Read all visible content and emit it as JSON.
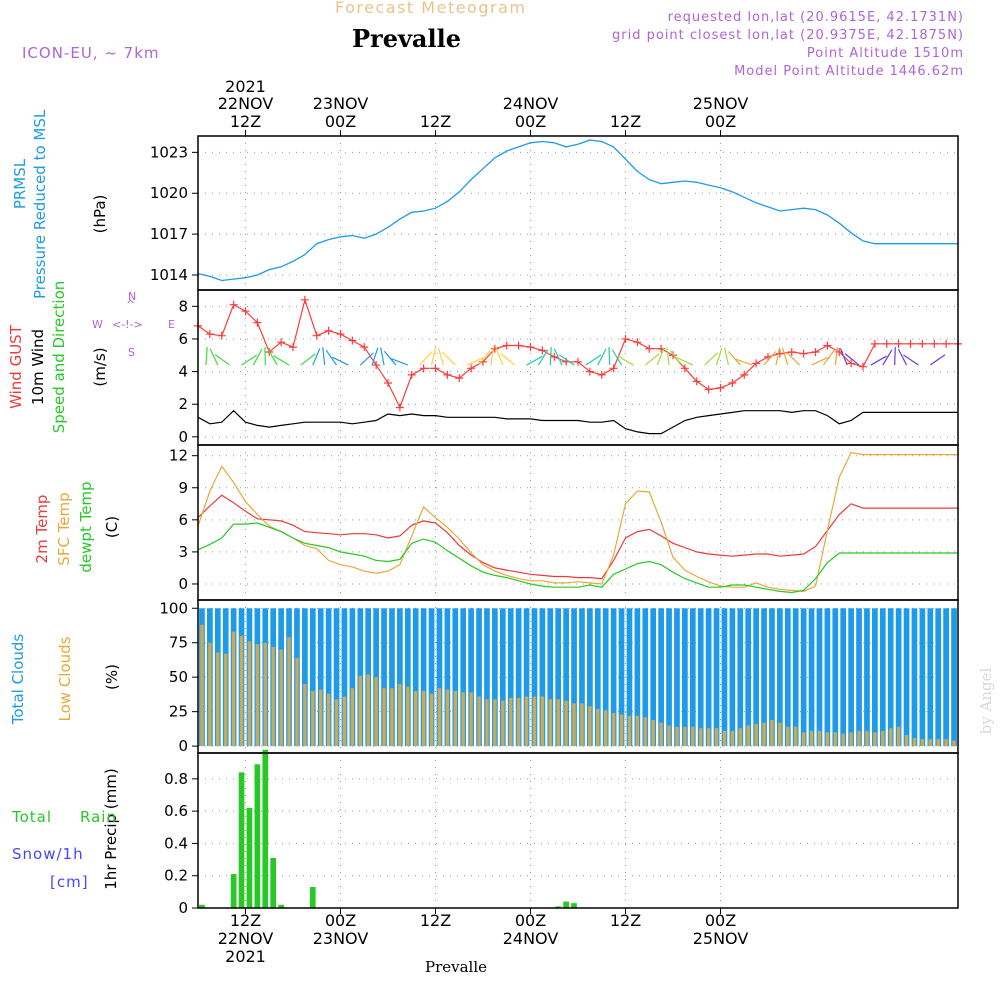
{
  "header": {
    "supertitle": "Forecast Meteogram",
    "title": "Prevalle",
    "model": "ICON-EU, ~ 7km",
    "requested": "requested lon,lat (20.9615E, 42.1731N)",
    "gridpoint": "grid point closest lon,lat (20.9375E, 42.1875N)",
    "point_altitude": "Point Altitude 1510m",
    "model_altitude": "Model Point Altitude 1446.62m",
    "footer": "Prevalle",
    "watermark": "by Angel"
  },
  "labels": {
    "prmsl_1": "PRMSL",
    "prmsl_2": "Pressure Reduced to MSL",
    "prmsl_unit": "(hPa)",
    "gust": "Wind GUST",
    "wind10": "10m Wind",
    "wind_dir": "Speed and Direction",
    "wind_unit": "(m/s)",
    "t2m": "2m Temp",
    "sfc": "SFC Temp",
    "dewpt": "dewpt Temp",
    "temp_unit": "(C)",
    "total_clouds": "Total Clouds",
    "low_clouds": "Low Clouds",
    "cloud_unit": "(%)",
    "precip": "1hr Precip (mm)",
    "rain_total": "Total",
    "rain": "Rain",
    "snow": "Snow/1h",
    "cm": "[cm]",
    "compass_n": "N",
    "compass_s": "S",
    "compass_w": "W",
    "compass_e": "E",
    "compass_arrow": "<-!->"
  },
  "colors": {
    "pressure": "#1e9be8",
    "gust": "#ff3c3c",
    "wind": "#000000",
    "t2m": "#e83c3c",
    "sfc": "#e8a83c",
    "dewpt": "#28c828",
    "total_clouds": "#1e9be8",
    "low_clouds": "#c8aa5a",
    "rain": "#28c828",
    "snow": "#4646ff",
    "title_purple": "#b064d6"
  },
  "time_axis": {
    "top_labels": [
      {
        "line1": "2021",
        "line2": "22NOV",
        "line3": "12Z"
      },
      {
        "line1": "",
        "line2": "23NOV",
        "line3": "00Z"
      },
      {
        "line1": "",
        "line2": "",
        "line3": "12Z"
      },
      {
        "line1": "",
        "line2": "24NOV",
        "line3": "00Z"
      },
      {
        "line1": "",
        "line2": "",
        "line3": "12Z"
      },
      {
        "line1": "",
        "line2": "25NOV",
        "line3": "00Z"
      }
    ],
    "bottom_labels": [
      {
        "line1": "12Z",
        "line2": "22NOV",
        "line3": "2021"
      },
      {
        "line1": "00Z",
        "line2": "23NOV",
        "line3": ""
      },
      {
        "line1": "12Z",
        "line2": "",
        "line3": ""
      },
      {
        "line1": "00Z",
        "line2": "24NOV",
        "line3": ""
      },
      {
        "line1": "12Z",
        "line2": "",
        "line3": ""
      },
      {
        "line1": "00Z",
        "line2": "25NOV",
        "line3": ""
      }
    ]
  },
  "chart_data": [
    {
      "type": "line",
      "name": "PRMSL",
      "ylabel": "(hPa)",
      "yticks": [
        1014,
        1017,
        1020,
        1023
      ],
      "ylim": [
        1012.9,
        1024.2
      ],
      "x_hours": [
        0,
        3,
        6,
        9,
        12,
        15,
        18,
        21,
        24,
        27,
        30,
        33,
        36,
        39,
        42,
        45,
        48,
        51,
        54,
        57,
        60,
        63,
        66,
        69,
        72,
        75,
        78,
        81,
        84,
        87,
        90,
        93,
        96,
        99,
        102,
        105,
        108,
        111,
        114,
        117,
        120,
        123,
        126,
        129,
        132,
        135,
        138,
        141,
        144,
        147,
        150,
        153,
        156,
        159,
        162,
        165,
        168,
        171,
        174,
        177,
        180,
        183,
        186,
        189,
        192
      ],
      "y": [
        1014.1,
        1013.9,
        1013.6,
        1013.7,
        1013.8,
        1014,
        1014.4,
        1014.6,
        1015,
        1015.5,
        1016.3,
        1016.6,
        1016.8,
        1016.9,
        1016.7,
        1017,
        1017.5,
        1018.1,
        1018.6,
        1018.7,
        1018.9,
        1019.4,
        1020.1,
        1021,
        1021.8,
        1022.6,
        1023.1,
        1023.4,
        1023.7,
        1023.8,
        1023.7,
        1023.4,
        1023.6,
        1023.9,
        1023.8,
        1023.4,
        1022.5,
        1021.6,
        1021,
        1020.7,
        1020.8,
        1020.9,
        1020.8,
        1020.6,
        1020.4,
        1020.1,
        1019.7,
        1019.3,
        1019,
        1018.7,
        1018.8,
        1018.9,
        1018.8,
        1018.4,
        1017.8,
        1017.1,
        1016.5,
        1016.3,
        1016.3,
        1016.3,
        1016.3,
        1016.3,
        1016.3,
        1016.3,
        1016.3
      ]
    },
    {
      "type": "line",
      "name": "Wind",
      "ylabel": "(m/s)",
      "yticks": [
        0,
        2,
        4,
        6,
        8
      ],
      "ylim": [
        -0.5,
        9
      ],
      "x_hours": [
        0,
        3,
        6,
        9,
        12,
        15,
        18,
        21,
        24,
        27,
        30,
        33,
        36,
        39,
        42,
        45,
        48,
        51,
        54,
        57,
        60,
        63,
        66,
        69,
        72,
        75,
        78,
        81,
        84,
        87,
        90,
        93,
        96,
        99,
        102,
        105,
        108,
        111,
        114,
        117,
        120,
        123,
        126,
        129,
        132,
        135,
        138,
        141,
        144,
        147,
        150,
        153,
        156,
        159,
        162,
        165,
        168,
        171,
        174,
        177,
        180,
        183,
        186,
        189,
        192
      ],
      "series": [
        {
          "name": "Wind GUST",
          "y": [
            6.8,
            6.3,
            6.2,
            8.1,
            7.7,
            7.0,
            5.2,
            5.8,
            5.5,
            8.4,
            6.2,
            6.5,
            6.3,
            5.9,
            5.5,
            4.4,
            3.3,
            1.8,
            3.8,
            4.2,
            4.2,
            3.8,
            3.6,
            4.2,
            4.6,
            5.4,
            5.6,
            5.6,
            5.5,
            5.3,
            4.9,
            4.6,
            4.6,
            4.0,
            3.8,
            4.2,
            6.0,
            5.8,
            5.4,
            5.4,
            5.0,
            4.2,
            3.4,
            2.9,
            3.0,
            3.3,
            3.8,
            4.5,
            4.9,
            5.1,
            5.2,
            5.1,
            5.2,
            5.6,
            5.2,
            4.5,
            4.3,
            5.7,
            5.7,
            5.7,
            5.7,
            5.7,
            5.7,
            5.7,
            5.7
          ]
        },
        {
          "name": "10m Wind",
          "y": [
            1.2,
            0.8,
            0.9,
            1.6,
            0.9,
            0.7,
            0.6,
            0.7,
            0.8,
            0.9,
            0.9,
            0.9,
            0.9,
            0.8,
            0.9,
            1.0,
            1.4,
            1.3,
            1.4,
            1.3,
            1.3,
            1.2,
            1.2,
            1.2,
            1.2,
            1.2,
            1.1,
            1.1,
            1.1,
            1.0,
            1.0,
            1.0,
            1.0,
            0.9,
            0.9,
            1.0,
            0.5,
            0.3,
            0.2,
            0.2,
            0.6,
            1.0,
            1.2,
            1.3,
            1.4,
            1.5,
            1.6,
            1.6,
            1.6,
            1.6,
            1.5,
            1.6,
            1.6,
            1.3,
            0.8,
            1.0,
            1.5,
            1.5,
            1.5,
            1.5,
            1.5,
            1.5,
            1.5,
            1.5,
            1.5
          ]
        }
      ]
    },
    {
      "type": "line",
      "name": "Temperature",
      "ylabel": "(C)",
      "yticks": [
        0,
        3,
        6,
        9,
        12
      ],
      "ylim": [
        -1.5,
        13
      ],
      "x_hours": [
        0,
        3,
        6,
        9,
        12,
        15,
        18,
        21,
        24,
        27,
        30,
        33,
        36,
        39,
        42,
        45,
        48,
        51,
        54,
        57,
        60,
        63,
        66,
        69,
        72,
        75,
        78,
        81,
        84,
        87,
        90,
        93,
        96,
        99,
        102,
        105,
        108,
        111,
        114,
        117,
        120,
        123,
        126,
        129,
        132,
        135,
        138,
        141,
        144,
        147,
        150,
        153,
        156,
        159,
        162,
        165,
        168,
        171,
        174,
        177,
        180,
        183,
        186,
        189,
        192
      ],
      "series": [
        {
          "name": "2m Temp",
          "y": [
            6.2,
            7.3,
            8.3,
            7.6,
            6.8,
            6.1,
            6.0,
            5.9,
            5.5,
            4.9,
            4.8,
            4.7,
            4.6,
            4.7,
            4.7,
            4.6,
            4.3,
            4.5,
            5.5,
            5.9,
            5.7,
            4.8,
            3.6,
            2.7,
            2.0,
            1.5,
            1.3,
            1.1,
            0.9,
            0.8,
            0.7,
            0.7,
            0.6,
            0.6,
            0.5,
            2.2,
            4.3,
            4.9,
            5.1,
            4.5,
            3.8,
            3.4,
            3.0,
            2.8,
            2.7,
            2.6,
            2.7,
            2.8,
            2.8,
            2.6,
            2.7,
            2.8,
            3.5,
            5.0,
            6.5,
            7.5,
            7.1,
            7.1,
            7.1,
            7.1,
            7.1,
            7.1,
            7.1,
            7.1,
            7.1
          ]
        },
        {
          "name": "SFC Temp",
          "y": [
            5.4,
            8.7,
            11.0,
            9.5,
            7.7,
            6.5,
            5.4,
            4.9,
            4.3,
            3.6,
            3.3,
            2.2,
            1.8,
            1.6,
            1.2,
            1.0,
            1.2,
            1.8,
            4.5,
            7.2,
            6.2,
            5.3,
            4.2,
            2.9,
            1.8,
            1.2,
            0.8,
            0.5,
            0.3,
            0.3,
            0.1,
            0.1,
            0.2,
            0.1,
            0.0,
            2.7,
            7.5,
            8.7,
            8.6,
            5.8,
            2.5,
            1.3,
            0.7,
            0.2,
            -0.2,
            -0.3,
            -0.3,
            0.1,
            -0.3,
            -0.5,
            -0.6,
            -0.7,
            -0.2,
            5.0,
            10.0,
            12.3,
            12.1,
            12.1,
            12.1,
            12.1,
            12.1,
            12.1,
            12.1,
            12.1,
            12.1
          ]
        },
        {
          "name": "dewpt Temp",
          "y": [
            3.2,
            3.7,
            4.3,
            5.6,
            5.6,
            5.7,
            5.3,
            4.9,
            4.3,
            3.8,
            3.6,
            3.4,
            3.0,
            2.8,
            2.6,
            2.2,
            2.1,
            2.3,
            3.8,
            4.2,
            3.9,
            3.1,
            2.4,
            1.7,
            1.1,
            0.8,
            0.6,
            0.3,
            0.0,
            -0.2,
            -0.3,
            -0.3,
            -0.3,
            -0.1,
            -0.3,
            0.9,
            1.4,
            1.9,
            2.1,
            1.8,
            1.1,
            0.5,
            0.1,
            -0.3,
            -0.3,
            -0.1,
            -0.1,
            -0.3,
            -0.5,
            -0.7,
            -0.8,
            -0.6,
            0.5,
            2.0,
            2.9,
            2.9,
            2.9,
            2.9,
            2.9,
            2.9,
            2.9,
            2.9,
            2.9,
            2.9,
            2.9
          ]
        }
      ]
    },
    {
      "type": "bar",
      "name": "Clouds",
      "ylabel": "(%)",
      "yticks": [
        0,
        25,
        50,
        75,
        100
      ],
      "ylim": [
        -5,
        106
      ],
      "x_hours_start": 0,
      "x_hours_step": 2,
      "series": [
        {
          "name": "Total Clouds",
          "values": [
            100,
            100,
            100,
            100,
            100,
            100,
            100,
            100,
            100,
            100,
            100,
            100,
            100,
            100,
            100,
            100,
            100,
            100,
            100,
            100,
            100,
            100,
            100,
            100,
            100,
            100,
            100,
            100,
            100,
            100,
            100,
            100,
            100,
            100,
            100,
            100,
            100,
            100,
            100,
            100,
            100,
            100,
            100,
            100,
            100,
            100,
            100,
            100,
            100,
            100,
            100,
            100,
            100,
            100,
            100,
            100,
            100,
            100,
            100,
            100,
            100,
            100,
            100,
            100,
            100,
            100,
            100,
            100,
            100,
            100,
            100,
            100,
            100,
            100,
            100,
            100,
            100,
            100,
            100,
            100,
            100,
            100,
            100,
            100,
            100,
            100,
            100,
            100,
            100,
            100,
            100,
            100,
            100,
            100,
            100,
            100
          ]
        },
        {
          "name": "Low Clouds",
          "values": [
            88,
            75,
            68,
            67,
            83,
            80,
            76,
            74,
            75,
            72,
            70,
            79,
            64,
            45,
            40,
            41,
            38,
            34,
            36,
            42,
            51,
            52,
            50,
            42,
            42,
            45,
            43,
            40,
            40,
            38,
            42,
            41,
            40,
            39,
            39,
            36,
            34,
            34,
            33,
            35,
            35,
            36,
            36,
            36,
            34,
            34,
            33,
            31,
            31,
            29,
            27,
            26,
            24,
            23,
            22,
            22,
            21,
            19,
            17,
            15,
            14,
            14,
            14,
            13,
            13,
            13,
            11,
            11,
            13,
            15,
            16,
            17,
            19,
            17,
            14,
            14,
            10,
            11,
            11,
            10,
            10,
            9,
            10,
            11,
            11,
            10,
            11,
            13,
            14,
            8,
            6,
            5,
            5,
            5,
            5,
            4
          ]
        }
      ]
    },
    {
      "type": "bar",
      "name": "Precip",
      "ylabel": "1hr Precip (mm)",
      "yticks": [
        0,
        0.2,
        0.4,
        0.6,
        0.8
      ],
      "ylim": [
        0,
        0.96
      ],
      "x_hours_start": 0,
      "x_hours_step": 2,
      "series": [
        {
          "name": "Total Rain",
          "values": [
            0.02,
            0,
            0,
            0,
            0.21,
            0.84,
            0.62,
            0.89,
            0.98,
            0.31,
            0.02,
            0,
            0,
            0,
            0.13,
            0,
            0,
            0,
            0,
            0,
            0,
            0,
            0,
            0,
            0,
            0,
            0,
            0,
            0,
            0,
            0,
            0,
            0,
            0,
            0,
            0,
            0,
            0,
            0,
            0,
            0,
            0,
            0,
            0,
            0,
            0.01,
            0.04,
            0.03,
            0,
            0,
            0,
            0,
            0,
            0,
            0,
            0,
            0,
            0,
            0,
            0,
            0,
            0,
            0,
            0,
            0,
            0,
            0,
            0,
            0,
            0,
            0,
            0,
            0,
            0,
            0,
            0,
            0,
            0,
            0,
            0,
            0,
            0,
            0,
            0,
            0,
            0,
            0,
            0,
            0,
            0,
            0,
            0,
            0,
            0,
            0,
            0
          ]
        },
        {
          "name": "Snow/1h",
          "values": [
            0,
            0,
            0,
            0,
            0,
            0,
            0,
            0,
            0,
            0,
            0,
            0,
            0,
            0,
            0,
            0,
            0,
            0,
            0,
            0,
            0,
            0,
            0,
            0,
            0,
            0,
            0,
            0,
            0,
            0,
            0,
            0,
            0,
            0,
            0,
            0,
            0,
            0,
            0,
            0,
            0,
            0,
            0,
            0,
            0,
            0,
            0,
            0,
            0,
            0,
            0,
            0,
            0,
            0,
            0,
            0,
            0,
            0,
            0,
            0,
            0,
            0,
            0,
            0,
            0,
            0,
            0,
            0,
            0,
            0,
            0,
            0,
            0,
            0,
            0,
            0,
            0,
            0,
            0,
            0,
            0,
            0,
            0,
            0,
            0,
            0,
            0,
            0,
            0,
            0,
            0,
            0,
            0,
            0,
            0,
            0
          ]
        }
      ]
    }
  ]
}
